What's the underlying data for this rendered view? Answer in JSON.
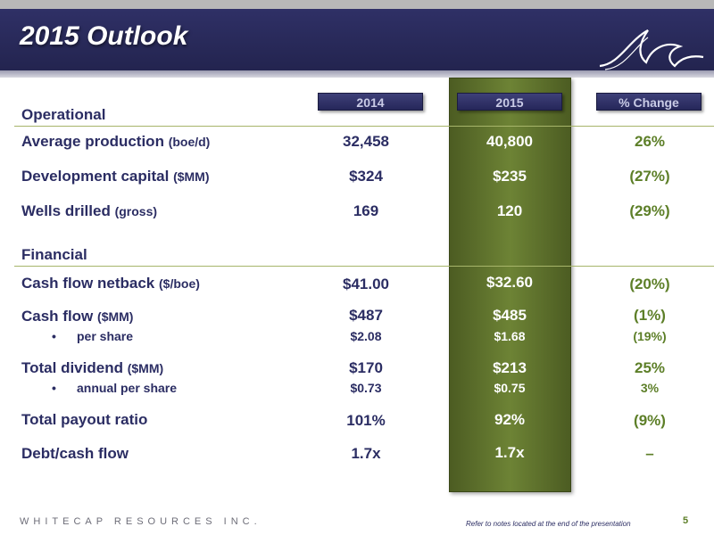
{
  "header": {
    "title": "2015 Outlook",
    "logo_icon": "wave-logo-icon",
    "colors": {
      "band": "#2f3066",
      "accent_green": "#5d7f28",
      "col_2015": "#6d8335"
    }
  },
  "columns": {
    "y2014": "2014",
    "y2015": "2015",
    "change": "% Change"
  },
  "sections": {
    "operational": "Operational",
    "financial": "Financial"
  },
  "rows": [
    {
      "label": "Average production",
      "unit": "(boe/d)",
      "v2014": "32,458",
      "v2015": "40,800",
      "change": "26%"
    },
    {
      "label": "Development capital",
      "unit": "($MM)",
      "v2014": "$324",
      "v2015": "$235",
      "change": "(27%)"
    },
    {
      "label": "Wells drilled",
      "unit": "(gross)",
      "v2014": "169",
      "v2015": "120",
      "change": "(29%)"
    },
    {
      "label": "Cash flow netback",
      "unit": "($/boe)",
      "v2014": "$41.00",
      "v2015": "$32.60",
      "change": "(20%)"
    },
    {
      "label": "Cash flow",
      "unit": "($MM)",
      "v2014": "$487",
      "v2015": "$485",
      "change": "(1%)",
      "sub": {
        "label": "per share",
        "v2014": "$2.08",
        "v2015": "$1.68",
        "change": "(19%)"
      }
    },
    {
      "label": "Total dividend",
      "unit": "($MM)",
      "v2014": "$170",
      "v2015": "$213",
      "change": "25%",
      "sub": {
        "label": "annual per share",
        "v2014": "$0.73",
        "v2015": "$0.75",
        "change": "3%"
      }
    },
    {
      "label": "Total payout ratio",
      "unit": "",
      "v2014": "101%",
      "v2015": "92%",
      "change": "(9%)"
    },
    {
      "label": "Debt/cash flow",
      "unit": "",
      "v2014": "1.7x",
      "v2015": "1.7x",
      "change": "–"
    }
  ],
  "footer": {
    "company": "WHITECAP RESOURCES INC.",
    "note": "Refer to notes located at the end of the presentation",
    "page": "5"
  }
}
